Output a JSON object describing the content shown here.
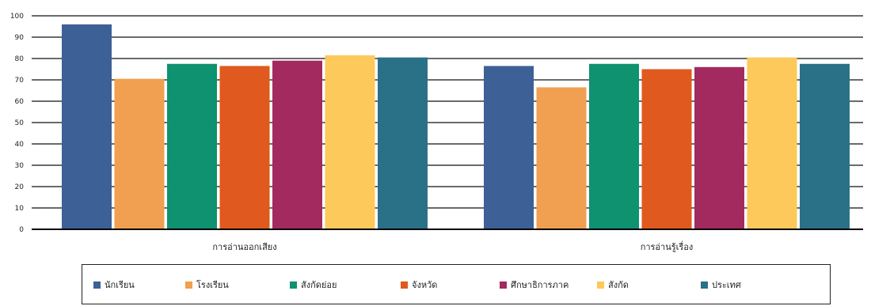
{
  "chart_data": {
    "type": "bar",
    "categories": [
      "การอ่านออกเสียง",
      "การอ่านรู้เรื่อง"
    ],
    "series": [
      {
        "name": "นักเรียน",
        "color": "#3d6096",
        "values": [
          96,
          76.5
        ]
      },
      {
        "name": "โรงเรียน",
        "color": "#f0a050",
        "values": [
          70.5,
          66.5
        ]
      },
      {
        "name": "สังกัดย่อย",
        "color": "#0e9270",
        "values": [
          77.5,
          77.5
        ]
      },
      {
        "name": "จังหวัด",
        "color": "#e0591e",
        "values": [
          76.5,
          75
        ]
      },
      {
        "name": "ศึกษาธิการภาค",
        "color": "#a32a5e",
        "values": [
          79,
          76
        ]
      },
      {
        "name": "สังกัด",
        "color": "#fcc95a",
        "values": [
          81.5,
          80.5
        ]
      },
      {
        "name": "ประเทศ",
        "color": "#2a7188",
        "values": [
          80.5,
          77.5
        ]
      }
    ],
    "ylim": [
      0,
      100
    ],
    "yticks": [
      0,
      10,
      20,
      30,
      40,
      50,
      60,
      70,
      80,
      90,
      100
    ],
    "grid": true,
    "legend_position": "bottom"
  }
}
